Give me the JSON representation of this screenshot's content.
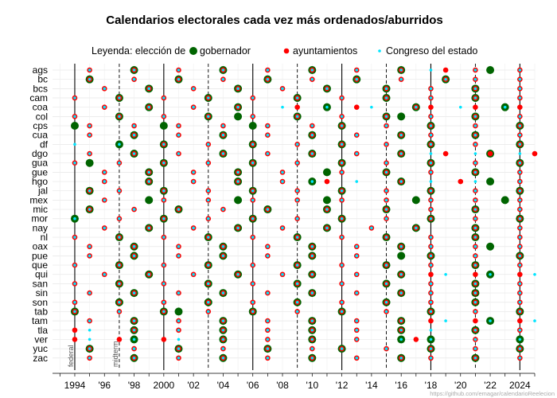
{
  "chart_data": {
    "type": "scatter",
    "title": "Calendarios electorales cada vez más ordenados/aburridos",
    "legend": {
      "prefix": "Leyenda: elección de",
      "items": [
        {
          "key": "gov",
          "label": "gobernador",
          "color": "#006400"
        },
        {
          "key": "ayu",
          "label": "ayuntamientos",
          "color": "#ff0000"
        },
        {
          "key": "con",
          "label": "Congreso del estado",
          "color": "#00e5ff"
        }
      ],
      "placement": "top"
    },
    "x_range": [
      1992.5,
      2025
    ],
    "x_ticks": [
      {
        "value": 1994,
        "label": "1994"
      },
      {
        "value": 1996,
        "label": "'96"
      },
      {
        "value": 1998,
        "label": "'98"
      },
      {
        "value": 2000,
        "label": "2000"
      },
      {
        "value": 2002,
        "label": "'02"
      },
      {
        "value": 2004,
        "label": "'04"
      },
      {
        "value": 2006,
        "label": "'06"
      },
      {
        "value": 2008,
        "label": "'08"
      },
      {
        "value": 2010,
        "label": "'10"
      },
      {
        "value": 2012,
        "label": "'12"
      },
      {
        "value": 2014,
        "label": "'14"
      },
      {
        "value": 2016,
        "label": "'16"
      },
      {
        "value": 2018,
        "label": "'18"
      },
      {
        "value": 2020,
        "label": "'20"
      },
      {
        "value": 2022,
        "label": "'22"
      },
      {
        "value": 2024,
        "label": "2024"
      }
    ],
    "federal_years": [
      1994,
      2000,
      2006,
      2012,
      2018,
      2024
    ],
    "midterm_years": [
      1997,
      2003,
      2009,
      2015,
      2021
    ],
    "annotations": [
      {
        "text": "federal",
        "x": 1994
      },
      {
        "text": "midterm",
        "x": 1997
      }
    ],
    "credit": "https://github.com/emagar/calendarioReelecion",
    "states": [
      "ags",
      "bc",
      "bcs",
      "cam",
      "coa",
      "col",
      "cps",
      "cua",
      "df",
      "dgo",
      "gua",
      "gue",
      "hgo",
      "jal",
      "mex",
      "mic",
      "mor",
      "nay",
      "nl",
      "oax",
      "pue",
      "que",
      "qui",
      "san",
      "sin",
      "son",
      "tab",
      "tam",
      "tla",
      "ver",
      "yuc",
      "zac"
    ],
    "elections": {
      "ags": {
        "gov": [
          1998,
          2004,
          2010,
          2016,
          2022
        ],
        "ayu": [
          1995,
          1998,
          2001,
          2004,
          2007,
          2010,
          2013,
          2016,
          2019,
          2021,
          2024
        ],
        "con": [
          1995,
          1998,
          2001,
          2004,
          2007,
          2010,
          2013,
          2016,
          2018,
          2021,
          2024
        ]
      },
      "bc": {
        "gov": [
          1995,
          2001,
          2007,
          2013,
          2019
        ],
        "ayu": [
          1995,
          1998,
          2001,
          2004,
          2007,
          2010,
          2013,
          2016,
          2019,
          2021,
          2024
        ],
        "con": [
          1995,
          1998,
          2001,
          2004,
          2007,
          2010,
          2013,
          2016,
          2019,
          2021,
          2024
        ]
      },
      "bcs": {
        "gov": [
          1999,
          2005,
          2011,
          2015,
          2021
        ],
        "ayu": [
          1996,
          1999,
          2002,
          2005,
          2008,
          2011,
          2015,
          2018,
          2021,
          2024
        ],
        "con": [
          1996,
          1999,
          2002,
          2005,
          2008,
          2011,
          2015,
          2018,
          2021,
          2024
        ]
      },
      "cam": {
        "gov": [
          1997,
          2003,
          2009,
          2015,
          2021
        ],
        "ayu": [
          1994,
          1997,
          2000,
          2003,
          2006,
          2009,
          2012,
          2015,
          2018,
          2021,
          2024
        ],
        "con": [
          1994,
          1997,
          2000,
          2003,
          2006,
          2009,
          2012,
          2015,
          2018,
          2021,
          2024
        ]
      },
      "coa": {
        "gov": [
          1999,
          2005,
          2011,
          2017,
          2023
        ],
        "ayu": [
          1996,
          1999,
          2002,
          2005,
          2009,
          2013,
          2017,
          2018,
          2021,
          2024
        ],
        "con": [
          1996,
          1999,
          2002,
          2005,
          2008,
          2011,
          2014,
          2017,
          2020,
          2023
        ]
      },
      "col": {
        "gov": [
          1997,
          2003,
          2005,
          2009,
          2015,
          2016,
          2021
        ],
        "ayu": [
          1994,
          1997,
          2000,
          2003,
          2006,
          2009,
          2012,
          2015,
          2018,
          2021,
          2024
        ],
        "con": [
          1994,
          1997,
          2000,
          2003,
          2006,
          2009,
          2012,
          2015,
          2018,
          2021,
          2024
        ]
      },
      "cps": {
        "gov": [
          1994,
          2000,
          2006,
          2012,
          2018,
          2024
        ],
        "ayu": [
          1995,
          1998,
          2001,
          2004,
          2007,
          2010,
          2012,
          2015,
          2018,
          2021,
          2024
        ],
        "con": [
          1995,
          1998,
          2001,
          2004,
          2007,
          2010,
          2012,
          2015,
          2018,
          2021,
          2024
        ]
      },
      "cua": {
        "gov": [
          1998,
          2004,
          2010,
          2016,
          2021
        ],
        "ayu": [
          1995,
          1998,
          2001,
          2004,
          2007,
          2010,
          2013,
          2016,
          2018,
          2021,
          2024
        ],
        "con": [
          1995,
          1998,
          2001,
          2004,
          2007,
          2010,
          2013,
          2016,
          2018,
          2021,
          2024
        ]
      },
      "df": {
        "gov": [
          1997,
          2000,
          2006,
          2012,
          2018,
          2024
        ],
        "ayu": [
          2000,
          2003,
          2006,
          2009,
          2012,
          2015,
          2018,
          2021,
          2024
        ],
        "con": [
          1994,
          1997,
          2000,
          2003,
          2006,
          2009,
          2012,
          2015,
          2018,
          2021,
          2024
        ]
      },
      "dgo": {
        "gov": [
          1998,
          2004,
          2010,
          2016,
          2022
        ],
        "ayu": [
          1995,
          1998,
          2001,
          2004,
          2007,
          2010,
          2013,
          2016,
          2019,
          2022,
          2025
        ],
        "con": [
          1995,
          1998,
          2001,
          2004,
          2007,
          2010,
          2013,
          2016,
          2018,
          2021,
          2024
        ]
      },
      "gua": {
        "gov": [
          1995,
          2000,
          2006,
          2012,
          2018,
          2024
        ],
        "ayu": [
          1994,
          1997,
          2000,
          2003,
          2006,
          2009,
          2012,
          2015,
          2018,
          2021,
          2024
        ],
        "con": [
          1994,
          1997,
          2000,
          2003,
          2006,
          2009,
          2012,
          2015,
          2018,
          2021,
          2024
        ]
      },
      "gue": {
        "gov": [
          1999,
          2005,
          2011,
          2015,
          2021
        ],
        "ayu": [
          1996,
          1999,
          2002,
          2005,
          2008,
          2012,
          2015,
          2018,
          2021,
          2024
        ],
        "con": [
          1996,
          1999,
          2002,
          2005,
          2008,
          2012,
          2015,
          2018,
          2021,
          2024
        ]
      },
      "hgo": {
        "gov": [
          1999,
          2005,
          2010,
          2016,
          2022
        ],
        "ayu": [
          1996,
          1999,
          2002,
          2005,
          2008,
          2011,
          2016,
          2020,
          2024
        ],
        "con": [
          1996,
          1999,
          2002,
          2005,
          2008,
          2010,
          2013,
          2016,
          2018,
          2021,
          2024
        ]
      },
      "jal": {
        "gov": [
          1995,
          2000,
          2006,
          2012,
          2018,
          2024
        ],
        "ayu": [
          1995,
          1997,
          2000,
          2003,
          2006,
          2009,
          2012,
          2015,
          2018,
          2021,
          2024
        ],
        "con": [
          1995,
          1997,
          2000,
          2003,
          2006,
          2009,
          2012,
          2015,
          2018,
          2021,
          2024
        ]
      },
      "mex": {
        "gov": [
          1999,
          2005,
          2011,
          2017,
          2023
        ],
        "ayu": [
          1996,
          2000,
          2003,
          2006,
          2009,
          2012,
          2015,
          2018,
          2021,
          2024
        ],
        "con": [
          1996,
          2000,
          2003,
          2006,
          2009,
          2012,
          2015,
          2018,
          2021,
          2024
        ]
      },
      "mic": {
        "gov": [
          1995,
          2001,
          2007,
          2011,
          2015,
          2021
        ],
        "ayu": [
          1995,
          1998,
          2001,
          2004,
          2007,
          2011,
          2015,
          2018,
          2021,
          2024
        ],
        "con": [
          1995,
          1998,
          2001,
          2004,
          2007,
          2011,
          2015,
          2018,
          2021,
          2024
        ]
      },
      "mor": {
        "gov": [
          1994,
          2000,
          2006,
          2012,
          2018,
          2024
        ],
        "ayu": [
          1997,
          2000,
          2003,
          2006,
          2009,
          2012,
          2015,
          2018,
          2021,
          2024
        ],
        "con": [
          1994,
          1997,
          2000,
          2003,
          2006,
          2009,
          2012,
          2015,
          2018,
          2021,
          2024
        ]
      },
      "nay": {
        "gov": [
          1999,
          2005,
          2011,
          2017,
          2021
        ],
        "ayu": [
          1996,
          1999,
          2002,
          2005,
          2008,
          2011,
          2014,
          2017,
          2021,
          2024
        ],
        "con": [
          1996,
          1999,
          2002,
          2005,
          2008,
          2011,
          2014,
          2017,
          2021,
          2024
        ]
      },
      "nl": {
        "gov": [
          1997,
          2003,
          2009,
          2015,
          2021
        ],
        "ayu": [
          1994,
          1997,
          2000,
          2003,
          2006,
          2009,
          2012,
          2015,
          2018,
          2021,
          2024
        ],
        "con": [
          1994,
          1997,
          2000,
          2003,
          2006,
          2009,
          2012,
          2015,
          2018,
          2021,
          2024
        ]
      },
      "oax": {
        "gov": [
          1998,
          2004,
          2010,
          2016,
          2022
        ],
        "ayu": [
          1995,
          1998,
          2001,
          2004,
          2007,
          2010,
          2013,
          2016,
          2018,
          2021,
          2024
        ],
        "con": [
          1995,
          1998,
          2001,
          2004,
          2007,
          2010,
          2013,
          2016,
          2018,
          2021,
          2024
        ]
      },
      "pue": {
        "gov": [
          1998,
          2004,
          2010,
          2016,
          2018,
          2024
        ],
        "ayu": [
          1995,
          1998,
          2001,
          2004,
          2007,
          2010,
          2013,
          2018,
          2021,
          2024
        ],
        "con": [
          1995,
          1998,
          2001,
          2004,
          2007,
          2010,
          2013,
          2018,
          2021,
          2024
        ]
      },
      "que": {
        "gov": [
          1997,
          2003,
          2009,
          2015,
          2021
        ],
        "ayu": [
          1994,
          1997,
          2000,
          2003,
          2006,
          2009,
          2012,
          2015,
          2018,
          2021,
          2024
        ],
        "con": [
          1994,
          1997,
          2000,
          2003,
          2006,
          2009,
          2012,
          2015,
          2018,
          2021,
          2024
        ]
      },
      "qui": {
        "gov": [
          1999,
          2005,
          2010,
          2016,
          2022
        ],
        "ayu": [
          1996,
          1999,
          2002,
          2005,
          2008,
          2010,
          2013,
          2016,
          2018,
          2021,
          2024
        ],
        "con": [
          1996,
          1999,
          2002,
          2005,
          2008,
          2010,
          2013,
          2016,
          2019,
          2022,
          2025
        ]
      },
      "san": {
        "gov": [
          1997,
          2003,
          2009,
          2015,
          2021
        ],
        "ayu": [
          1994,
          1997,
          2000,
          2003,
          2006,
          2009,
          2012,
          2015,
          2018,
          2021,
          2024
        ],
        "con": [
          1994,
          1997,
          2000,
          2003,
          2006,
          2009,
          2012,
          2015,
          2018,
          2021,
          2024
        ]
      },
      "sin": {
        "gov": [
          1998,
          2004,
          2010,
          2016,
          2021
        ],
        "ayu": [
          1995,
          1998,
          2001,
          2004,
          2007,
          2010,
          2013,
          2016,
          2018,
          2021,
          2024
        ],
        "con": [
          1995,
          1998,
          2001,
          2004,
          2007,
          2010,
          2013,
          2016,
          2018,
          2021,
          2024
        ]
      },
      "son": {
        "gov": [
          1997,
          2003,
          2009,
          2015,
          2021
        ],
        "ayu": [
          1994,
          1997,
          2000,
          2003,
          2006,
          2009,
          2012,
          2015,
          2018,
          2021,
          2024
        ],
        "con": [
          1994,
          1997,
          2000,
          2003,
          2006,
          2009,
          2012,
          2015,
          2018,
          2021,
          2024
        ]
      },
      "tab": {
        "gov": [
          1994,
          2000,
          2001,
          2006,
          2012,
          2018,
          2024
        ],
        "ayu": [
          1994,
          1997,
          2000,
          2003,
          2006,
          2009,
          2012,
          2015,
          2018,
          2021,
          2024
        ],
        "con": [
          1994,
          1997,
          2000,
          2003,
          2006,
          2009,
          2012,
          2015,
          2018,
          2021,
          2024
        ]
      },
      "tam": {
        "gov": [
          1998,
          2004,
          2010,
          2016,
          2022
        ],
        "ayu": [
          1995,
          1998,
          2001,
          2004,
          2007,
          2010,
          2013,
          2016,
          2018,
          2021,
          2024
        ],
        "con": [
          1995,
          1998,
          2001,
          2004,
          2007,
          2010,
          2013,
          2016,
          2019,
          2022,
          2025
        ]
      },
      "tla": {
        "gov": [
          1998,
          2004,
          2010,
          2016,
          2021
        ],
        "ayu": [
          1994,
          1998,
          2001,
          2004,
          2007,
          2010,
          2013,
          2016,
          2021,
          2024
        ],
        "con": [
          1995,
          1998,
          2001,
          2004,
          2007,
          2010,
          2013,
          2016,
          2018,
          2021,
          2024
        ]
      },
      "ver": {
        "gov": [
          1998,
          2004,
          2010,
          2016,
          2018,
          2024
        ],
        "ayu": [
          1994,
          1997,
          2000,
          2004,
          2007,
          2010,
          2013,
          2017,
          2021
        ],
        "con": [
          1995,
          1998,
          2001,
          2004,
          2007,
          2010,
          2013,
          2016,
          2018,
          2021,
          2024
        ]
      },
      "yuc": {
        "gov": [
          1995,
          2001,
          2007,
          2012,
          2018,
          2024
        ],
        "ayu": [
          1995,
          1998,
          2001,
          2004,
          2007,
          2010,
          2012,
          2015,
          2018,
          2021,
          2024
        ],
        "con": [
          1995,
          1998,
          2001,
          2004,
          2007,
          2010,
          2012,
          2015,
          2018,
          2021,
          2024
        ]
      },
      "zac": {
        "gov": [
          1998,
          2004,
          2010,
          2016,
          2021
        ],
        "ayu": [
          1995,
          1998,
          2001,
          2004,
          2007,
          2010,
          2013,
          2016,
          2018,
          2021,
          2024
        ],
        "con": [
          1995,
          1998,
          2001,
          2004,
          2007,
          2010,
          2013,
          2016,
          2018,
          2021,
          2024
        ]
      }
    }
  }
}
